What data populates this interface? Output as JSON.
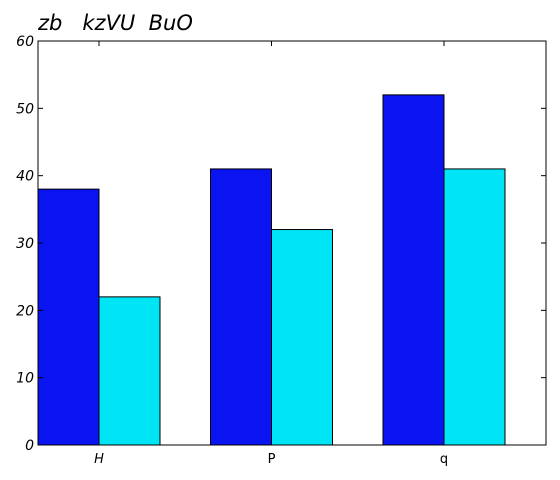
{
  "chart_data": {
    "type": "bar",
    "title": "zb   kzVU  BuO",
    "xlabel": "",
    "ylabel": "",
    "categories": [
      "H",
      "P",
      "q"
    ],
    "series": [
      {
        "values": [
          38,
          41,
          52
        ],
        "color": "#0a14f0"
      },
      {
        "values": [
          22,
          32,
          41
        ],
        "color": "#00e5f5"
      }
    ],
    "ylim": [
      0,
      60
    ],
    "yticks": [
      "0",
      "10",
      "20",
      "30",
      "40",
      "50",
      "60"
    ],
    "grid": false,
    "legend": "none"
  }
}
